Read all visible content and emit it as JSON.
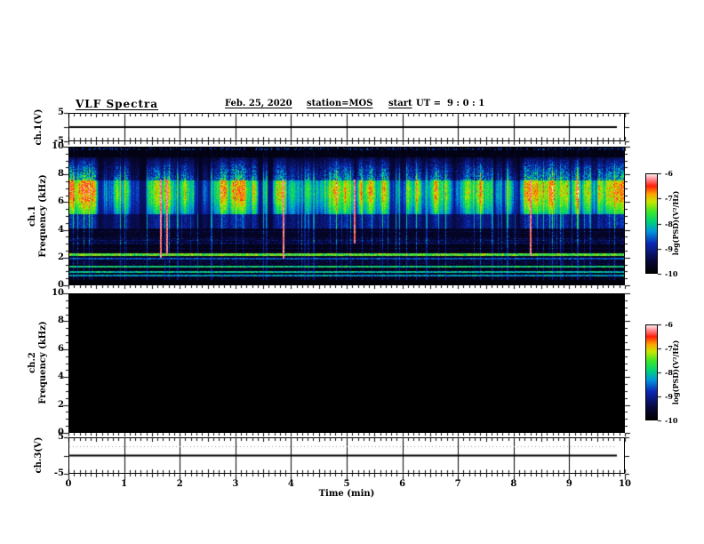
{
  "header": {
    "title": "VLF Spectra",
    "date": "Feb. 25, 2020",
    "station": "station=MOS",
    "start_prefix": "start",
    "start_value": "UT =  9 : 0 : 1"
  },
  "time_axis": {
    "label": "Time (min)",
    "min": 0,
    "max": 10,
    "tick_labels": [
      "0",
      "1",
      "2",
      "3",
      "4",
      "5",
      "6",
      "7",
      "8",
      "9",
      "10"
    ],
    "minor_step_min": 0.1
  },
  "panels": {
    "ch1_voltage": {
      "ylabel": "ch.1(V)",
      "ytick_labels": [
        "5",
        "-5"
      ],
      "y_range": [
        -5,
        5
      ]
    },
    "ch1_spectrogram": {
      "ylabel_channel": "ch.1",
      "ylabel_axis": "Frequency (kHz)",
      "ytick_labels": [
        "10",
        "8",
        "6",
        "4",
        "2",
        "0"
      ],
      "y_range_khz": [
        0,
        10
      ]
    },
    "ch2_spectrogram": {
      "ylabel_channel": "ch.2",
      "ylabel_axis": "Frequency (kHz)",
      "ytick_labels": [
        "10",
        "8",
        "6",
        "4",
        "2",
        "0"
      ],
      "y_range_khz": [
        0,
        10
      ]
    },
    "ch3_voltage": {
      "ylabel": "ch.3(V)",
      "ytick_labels": [
        "5",
        "-5"
      ],
      "y_range": [
        -5,
        5
      ]
    }
  },
  "colorbar": {
    "label": "log(PSD)(V²/Hz)",
    "tick_labels": [
      "-6",
      "-7",
      "-8",
      "-9",
      "-10"
    ],
    "z_range": [
      -10,
      -6
    ],
    "gradient_stops": [
      {
        "v": 0.0,
        "color": "#000000"
      },
      {
        "v": 0.13,
        "color": "#08083c"
      },
      {
        "v": 0.3,
        "color": "#0a28b4"
      },
      {
        "v": 0.42,
        "color": "#0096dc"
      },
      {
        "v": 0.52,
        "color": "#00d278"
      },
      {
        "v": 0.62,
        "color": "#3ce628"
      },
      {
        "v": 0.72,
        "color": "#c8e600"
      },
      {
        "v": 0.8,
        "color": "#ffa000"
      },
      {
        "v": 0.88,
        "color": "#ff1e0a"
      },
      {
        "v": 0.95,
        "color": "#ff8c96"
      },
      {
        "v": 1.0,
        "color": "#ffeaea"
      }
    ]
  },
  "chart_data": [
    {
      "type": "line",
      "panel": "ch.1(V)",
      "xlabel": "Time (min)",
      "x_range": [
        0,
        10
      ],
      "ylabel": "ch.1(V)",
      "y_range": [
        -5,
        5
      ],
      "series": [
        {
          "name": "ch.1 waveform",
          "description": "flat trace at approximately 0 V for the full 0–10 min record"
        }
      ]
    },
    {
      "type": "heatmap",
      "panel": "ch.1 spectrogram",
      "xlabel": "Time (min)",
      "x_range": [
        0,
        10
      ],
      "ylabel": "Frequency (kHz)",
      "y_range": [
        0,
        10
      ],
      "zlabel": "log(PSD)(V²/Hz)",
      "z_range": [
        -10,
        -6
      ],
      "features": {
        "main_broadband_band_khz": [
          5.1,
          7.6
        ],
        "peak_power_khz": [
          6.0,
          7.5
        ],
        "peak_levels": "red cores near -7 to -6 embedded in yellow/green (-8) band",
        "vertical_striations": "dense impulsive sferic streaks over the whole 0–10 min, several strong red streaks descending to ~2 kHz (e.g. near 1.7, 3.9, 8.3 min)",
        "upper_activity_khz": [
          7.6,
          9.3
        ],
        "quiet_dark_band_khz": [
          9.3,
          10
        ],
        "horizontal_lines_khz": [
          0.7,
          0.95,
          1.35,
          2.2
        ],
        "low_freq_background": "dark blue (≈ -9.5 to -10) below 4 kHz with sparse streaks",
        "bottom_black_band_khz": [
          0,
          0.35
        ]
      }
    },
    {
      "type": "heatmap",
      "panel": "ch.2 spectrogram",
      "xlabel": "Time (min)",
      "x_range": [
        0,
        10
      ],
      "ylabel": "Frequency (kHz)",
      "y_range": [
        0,
        10
      ],
      "zlabel": "log(PSD)(V²/Hz)",
      "z_range": [
        -10,
        -6
      ],
      "features": {
        "description": "no signal — entire panel at or below -10 (solid black)"
      }
    },
    {
      "type": "line",
      "panel": "ch.3(V)",
      "xlabel": "Time (min)",
      "x_range": [
        0,
        10
      ],
      "ylabel": "ch.3(V)",
      "y_range": [
        -5,
        5
      ],
      "series": [
        {
          "name": "ch.3 waveform",
          "description": "flat trace at approximately 0 V for the full 0–10 min record"
        }
      ]
    }
  ]
}
